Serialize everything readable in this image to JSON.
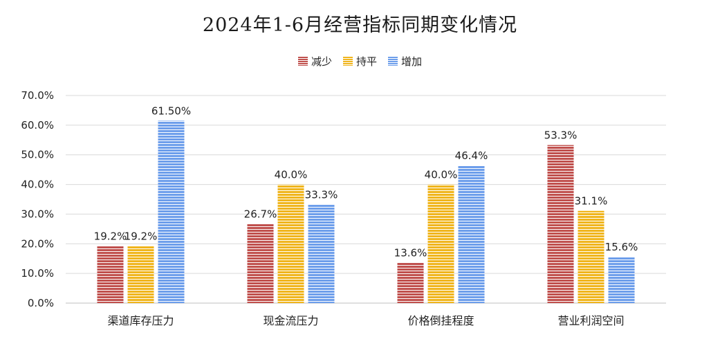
{
  "chart_data": {
    "type": "bar",
    "title": "2024年1-6月经营指标同期变化情况",
    "categories": [
      "渠道库存压力",
      "现金流压力",
      "价格倒挂程度",
      "营业利润空间"
    ],
    "series": [
      {
        "name": "减少",
        "color": "#c0504d",
        "values": [
          19.2,
          26.7,
          13.6,
          53.3
        ],
        "labels": [
          "19.2%",
          "26.7%",
          "13.6%",
          "53.3%"
        ]
      },
      {
        "name": "持平",
        "color": "#f0b51d",
        "values": [
          19.2,
          40.0,
          40.0,
          31.1
        ],
        "labels": [
          "19.2%",
          "40.0%",
          "40.0%",
          "31.1%"
        ]
      },
      {
        "name": "增加",
        "color": "#6d9eeb",
        "values": [
          61.5,
          33.3,
          46.4,
          15.6
        ],
        "labels": [
          "61.50%",
          "33.3%",
          "46.4%",
          "15.6%"
        ]
      }
    ],
    "ylim": [
      0,
      70
    ],
    "yticks": [
      "0.0%",
      "10.0%",
      "20.0%",
      "30.0%",
      "40.0%",
      "50.0%",
      "60.0%",
      "70.0%"
    ],
    "grid": true,
    "legend_position": "top-center",
    "bar_pattern": "horizontal-stripes"
  }
}
